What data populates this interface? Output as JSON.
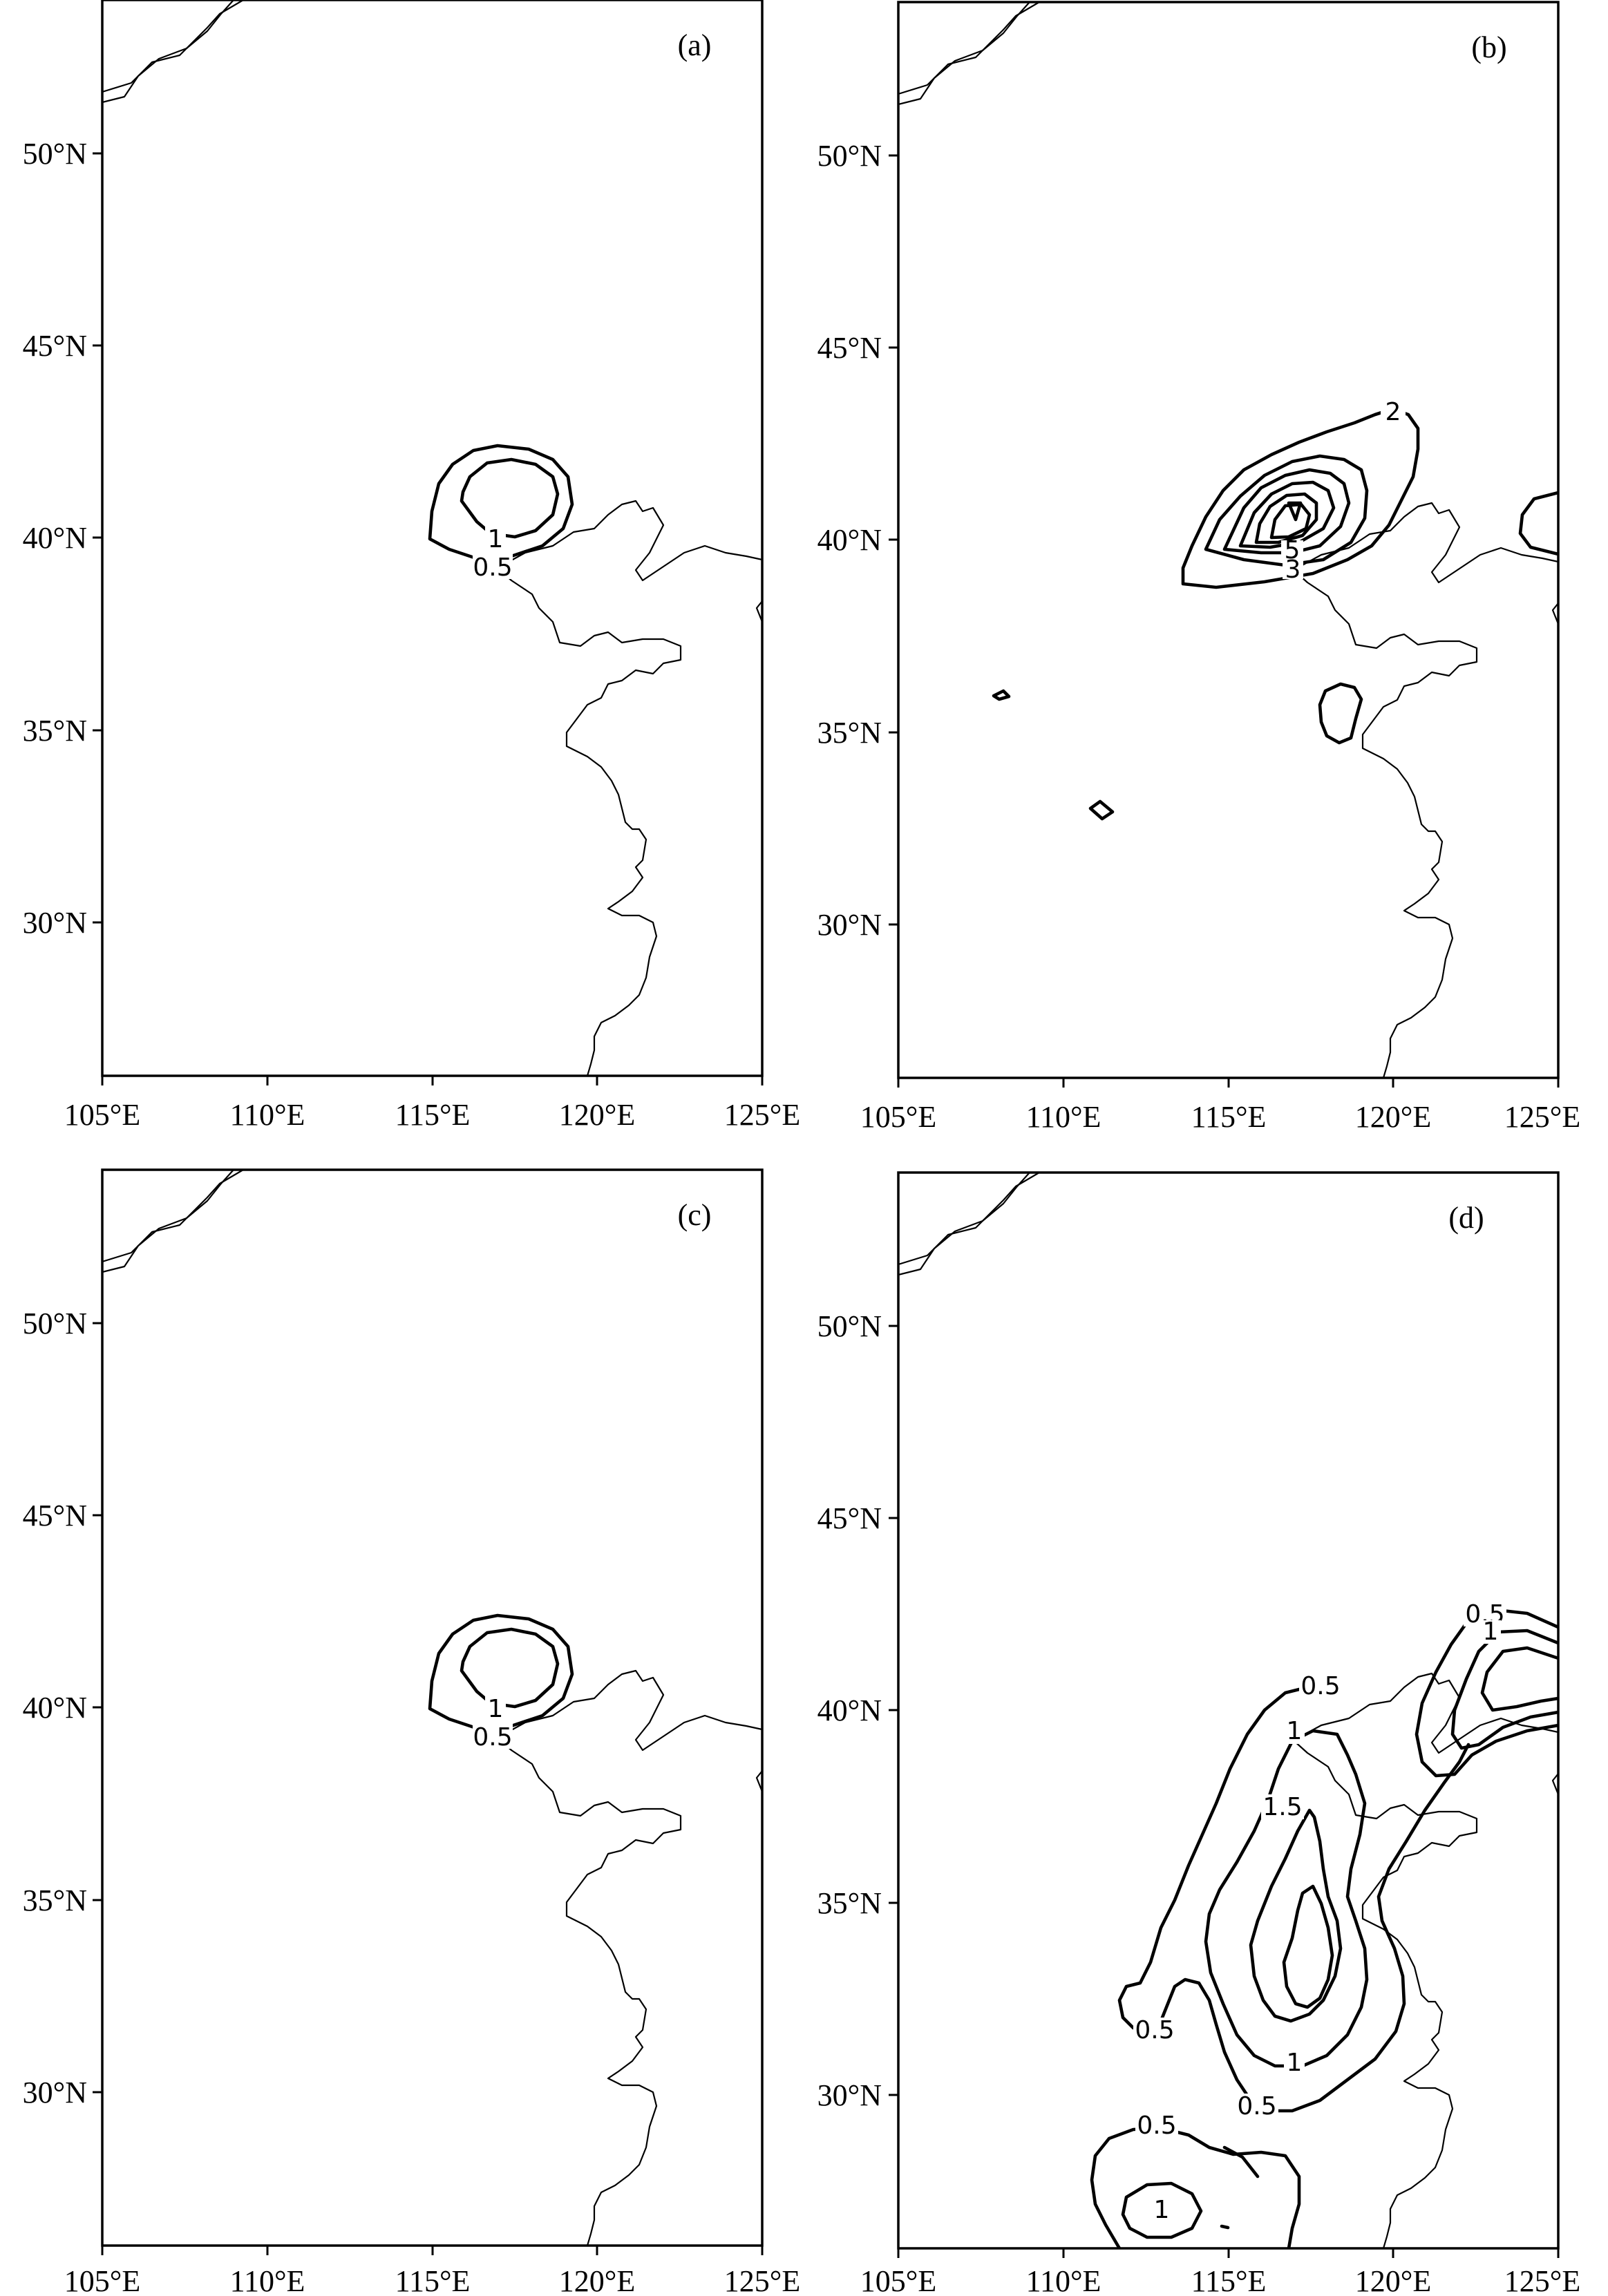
{
  "figure": {
    "panels": [
      {
        "id": "a",
        "label": "(a)"
      },
      {
        "id": "b",
        "label": "(b)"
      },
      {
        "id": "c",
        "label": "(c)"
      },
      {
        "id": "d",
        "label": "(d)"
      }
    ],
    "lon_ticks": [
      "105°E",
      "110°E",
      "115°E",
      "120°E",
      "125°E"
    ],
    "lat_ticks": [
      "50°N",
      "45°N",
      "40°N",
      "35°N",
      "30°N"
    ],
    "contour_labels": {
      "a": [
        "1",
        "0.5"
      ],
      "b": [
        "2",
        "5",
        "3"
      ],
      "c": [
        "1",
        "0.5"
      ],
      "d": [
        "0.5",
        "1",
        "0.5",
        "1",
        "1.5",
        "0.5",
        "1",
        "0.5",
        "0.5",
        "1"
      ]
    }
  },
  "chart_data": {
    "type": "contour-map",
    "xlim": [
      105,
      125
    ],
    "ylim": [
      26,
      54
    ],
    "grid": false
  }
}
